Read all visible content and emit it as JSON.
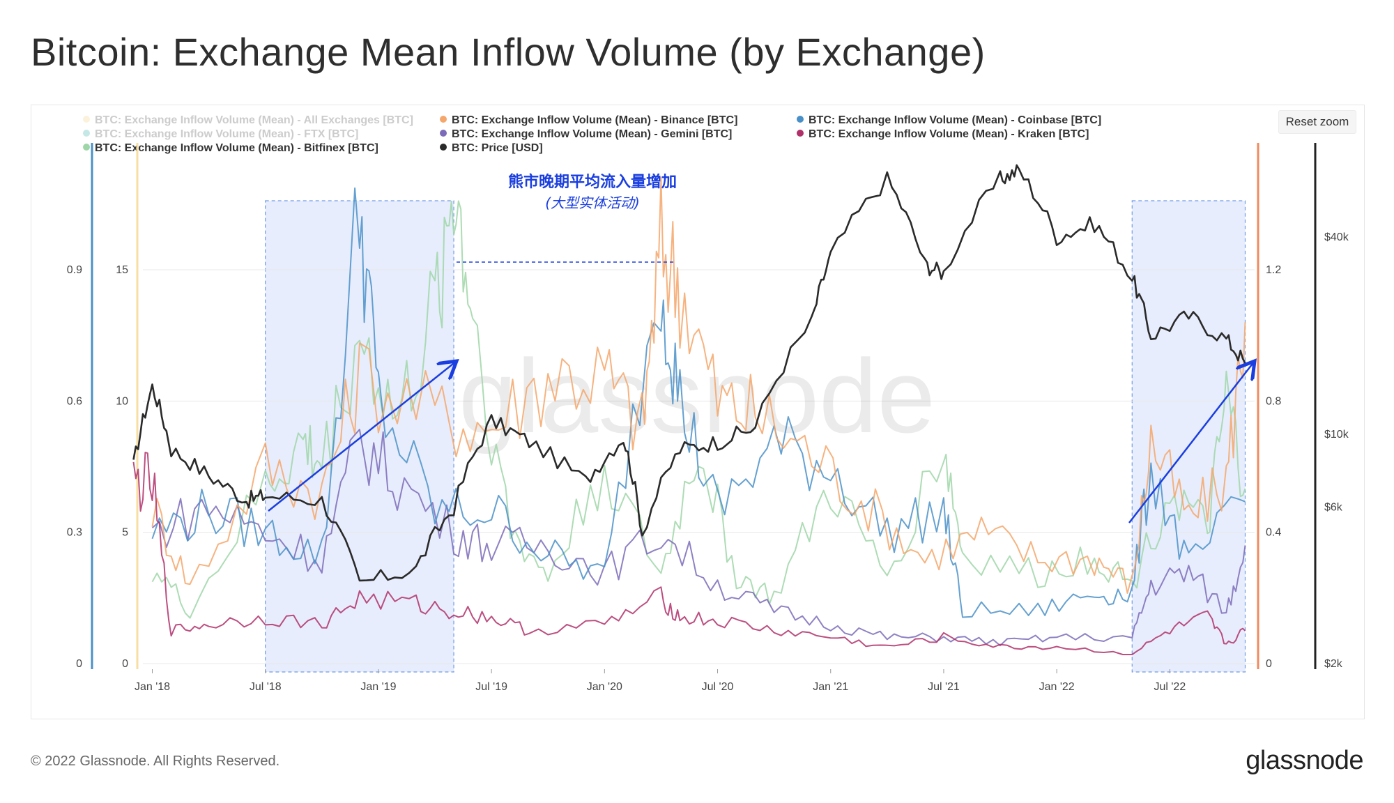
{
  "title": "Bitcoin: Exchange Mean Inflow Volume (by Exchange)",
  "reset_zoom_label": "Reset zoom",
  "watermark": "glassnode",
  "footer": {
    "copyright": "© 2022 Glassnode. All Rights Reserved.",
    "logo": "glassnode"
  },
  "annotation": {
    "line1": "熊市晚期平均流入量增加",
    "line2": "(大型实体活动)",
    "color": "#1a3ee0"
  },
  "chart_data": {
    "type": "line",
    "x_tick_labels": [
      "Jan '18",
      "Jul '18",
      "Jan '19",
      "Jul '19",
      "Jan '20",
      "Jul '20",
      "Jan '21",
      "Jul '21",
      "Jan '22",
      "Jul '22"
    ],
    "axes": {
      "left_outer": {
        "ticks": [
          "0",
          "0.3",
          "0.6",
          "0.9"
        ],
        "color": "#4a90c8"
      },
      "left_inner": {
        "ticks": [
          "0",
          "5",
          "10",
          "15"
        ],
        "color": "#f5a55c"
      },
      "right_inner": {
        "ticks": [
          "0",
          "0.4",
          "0.8",
          "1.2"
        ],
        "color": "#f08a5d"
      },
      "right_outer": {
        "ticks": [
          "$2k",
          "$6k",
          "$10k",
          "$40k"
        ],
        "scale": "log",
        "color": "#222222"
      }
    },
    "legend_position": "top",
    "legend": [
      {
        "label": "BTC: Exchange Inflow Volume (Mean) - All Exchanges [BTC]",
        "color": "#f7dfa4",
        "hidden": true
      },
      {
        "label": "BTC: Exchange Inflow Volume (Mean) - Binance [BTC]",
        "color": "#f5a66a",
        "hidden": false
      },
      {
        "label": "BTC: Exchange Inflow Volume (Mean) - Coinbase [BTC]",
        "color": "#4a90c8",
        "hidden": false
      },
      {
        "label": "BTC: Exchange Inflow Volume (Mean) - FTX [BTC]",
        "color": "#6cc6c0",
        "hidden": true
      },
      {
        "label": "BTC: Exchange Inflow Volume (Mean) - Gemini [BTC]",
        "color": "#7b6bb8",
        "hidden": false
      },
      {
        "label": "BTC: Exchange Inflow Volume (Mean) - Kraken [BTC]",
        "color": "#b0306a",
        "hidden": false
      },
      {
        "label": "BTC: Exchange Inflow Volume (Mean) - Bitfinex [BTC]",
        "color": "#9fd6a8",
        "hidden": false
      },
      {
        "label": "BTC: Price [USD]",
        "color": "#2a2a2a",
        "hidden": false
      }
    ],
    "highlight_periods": [
      [
        "Jul '18",
        "May '19"
      ],
      [
        "May '22",
        "Nov '22"
      ]
    ],
    "series": [
      {
        "name": "BTC: Price [USD]",
        "axis": "right_outer",
        "points": [
          [
            "Dec '17",
            8000
          ],
          [
            "Jan '18",
            14000
          ],
          [
            "Feb '18",
            9000
          ],
          [
            "Apr '18",
            7500
          ],
          [
            "Jun '18",
            6300
          ],
          [
            "Jul '18",
            6500
          ],
          [
            "Oct '18",
            6300
          ],
          [
            "Dec '18",
            3500
          ],
          [
            "Mar '19",
            3900
          ],
          [
            "May '19",
            6000
          ],
          [
            "Jul '19",
            11000
          ],
          [
            "Sep '19",
            9500
          ],
          [
            "Dec '19",
            7200
          ],
          [
            "Feb '20",
            9800
          ],
          [
            "Mar '20",
            5000
          ],
          [
            "May '20",
            9000
          ],
          [
            "Jul '20",
            9500
          ],
          [
            "Sep '20",
            10500
          ],
          [
            "Dec '20",
            22000
          ],
          [
            "Jan '21",
            35000
          ],
          [
            "Apr '21",
            60000
          ],
          [
            "Jun '21",
            33000
          ],
          [
            "Jul '21",
            31000
          ],
          [
            "Oct '21",
            60000
          ],
          [
            "Nov '21",
            64000
          ],
          [
            "Jan '22",
            40000
          ],
          [
            "Mar '22",
            44000
          ],
          [
            "May '22",
            30000
          ],
          [
            "Jun '22",
            20000
          ],
          [
            "Aug '22",
            23000
          ],
          [
            "Oct '22",
            19500
          ],
          [
            "Nov '22",
            16500
          ]
        ]
      },
      {
        "name": "BTC: Exchange Inflow Volume (Mean) - Binance [BTC]",
        "axis": "left_inner",
        "points": [
          [
            "Jan '18",
            6
          ],
          [
            "Mar '18",
            3
          ],
          [
            "Jul '18",
            7.5
          ],
          [
            "Oct '18",
            6.5
          ],
          [
            "Dec '18",
            11
          ],
          [
            "Apr '19",
            9.5
          ],
          [
            "Jul '19",
            9
          ],
          [
            "Oct '19",
            11
          ],
          [
            "Jan '20",
            11
          ],
          [
            "Mar '20",
            9
          ],
          [
            "Apr '20",
            16
          ],
          [
            "May '20",
            14.5
          ],
          [
            "Jul '20",
            10
          ],
          [
            "Sep '20",
            9.5
          ],
          [
            "Dec '20",
            8
          ],
          [
            "Mar '21",
            6
          ],
          [
            "Jun '21",
            4
          ],
          [
            "Sep '21",
            5
          ],
          [
            "Dec '21",
            4
          ],
          [
            "Mar '22",
            4
          ],
          [
            "May '22",
            3
          ],
          [
            "Jun '22",
            8.5
          ],
          [
            "Aug '22",
            5.5
          ],
          [
            "Oct '22",
            7
          ],
          [
            "Nov '22",
            13
          ]
        ]
      },
      {
        "name": "BTC: Exchange Inflow Volume (Mean) - Coinbase [BTC]",
        "axis": "left_outer",
        "points": [
          [
            "Jan '18",
            0.3
          ],
          [
            "Apr '18",
            0.35
          ],
          [
            "Jul '18",
            0.3
          ],
          [
            "Oct '18",
            0.25
          ],
          [
            "Dec '18",
            1.05
          ],
          [
            "Jan '19",
            0.6
          ],
          [
            "Apr '19",
            0.35
          ],
          [
            "Jul '19",
            0.35
          ],
          [
            "Oct '19",
            0.25
          ],
          [
            "Jan '20",
            0.2
          ],
          [
            "Apr '20",
            0.9
          ],
          [
            "May '20",
            0.6
          ],
          [
            "Jul '20",
            0.35
          ],
          [
            "Oct '20",
            0.5
          ],
          [
            "Jan '21",
            0.45
          ],
          [
            "Apr '21",
            0.3
          ],
          [
            "Jul '21",
            0.35
          ],
          [
            "Aug '21",
            0.12
          ],
          [
            "Dec '21",
            0.12
          ],
          [
            "Mar '22",
            0.16
          ],
          [
            "May '22",
            0.16
          ],
          [
            "Jun '22",
            0.45
          ],
          [
            "Aug '22",
            0.22
          ],
          [
            "Nov '22",
            0.37
          ]
        ]
      },
      {
        "name": "BTC: Exchange Inflow Volume (Mean) - Gemini [BTC]",
        "axis": "left_inner",
        "points": [
          [
            "Jan '18",
            5
          ],
          [
            "Apr '18",
            6
          ],
          [
            "Jul '18",
            5
          ],
          [
            "Oct '18",
            4
          ],
          [
            "Dec '18",
            8.5
          ],
          [
            "Feb '19",
            7
          ],
          [
            "May '19",
            5
          ],
          [
            "Jul '19",
            4.5
          ],
          [
            "Oct '19",
            4.5
          ],
          [
            "Jan '20",
            3.5
          ],
          [
            "Apr '20",
            5
          ],
          [
            "Jul '20",
            3
          ],
          [
            "Oct '20",
            2
          ],
          [
            "Jan '21",
            1.5
          ],
          [
            "Apr '21",
            1
          ],
          [
            "Jul '21",
            1
          ],
          [
            "Oct '21",
            0.8
          ],
          [
            "Jan '22",
            1
          ],
          [
            "May '22",
            1
          ],
          [
            "Jun '22",
            3
          ],
          [
            "Aug '22",
            3.5
          ],
          [
            "Oct '22",
            2
          ],
          [
            "Nov '22",
            4.5
          ]
        ]
      },
      {
        "name": "BTC: Exchange Inflow Volume (Mean) - Kraken [BTC]",
        "axis": "right_inner",
        "points": [
          [
            "Dec '17",
            0.55
          ],
          [
            "Jan '18",
            0.55
          ],
          [
            "Feb '18",
            0.1
          ],
          [
            "Apr '18",
            0.12
          ],
          [
            "Jul '18",
            0.14
          ],
          [
            "Oct '18",
            0.12
          ],
          [
            "Dec '18",
            0.2
          ],
          [
            "Mar '19",
            0.18
          ],
          [
            "May '19",
            0.16
          ],
          [
            "Jul '19",
            0.14
          ],
          [
            "Sep '19",
            0.1
          ],
          [
            "Jan '20",
            0.12
          ],
          [
            "Apr '20",
            0.2
          ],
          [
            "May '20",
            0.14
          ],
          [
            "Jul '20",
            0.13
          ],
          [
            "Oct '20",
            0.1
          ],
          [
            "Jan '21",
            0.08
          ],
          [
            "Apr '21",
            0.05
          ],
          [
            "Jul '21",
            0.08
          ],
          [
            "Oct '21",
            0.05
          ],
          [
            "Jan '22",
            0.05
          ],
          [
            "May '22",
            0.03
          ],
          [
            "Jul '22",
            0.1
          ],
          [
            "Sep '22",
            0.14
          ],
          [
            "Oct '22",
            0.06
          ],
          [
            "Nov '22",
            0.1
          ]
        ]
      },
      {
        "name": "BTC: Exchange Inflow Volume (Mean) - Bitfinex [BTC]",
        "axis": "left_outer",
        "points": [
          [
            "Jan '18",
            0.22
          ],
          [
            "Mar '18",
            0.12
          ],
          [
            "Jul '18",
            0.4
          ],
          [
            "Sep '18",
            0.5
          ],
          [
            "Oct '18",
            0.45
          ],
          [
            "Dec '18",
            0.75
          ],
          [
            "Feb '19",
            0.55
          ],
          [
            "Apr '19",
            0.8
          ],
          [
            "May '19",
            1.1
          ],
          [
            "Jun '19",
            0.8
          ],
          [
            "Aug '19",
            0.3
          ],
          [
            "Oct '19",
            0.2
          ],
          [
            "Jan '20",
            0.45
          ],
          [
            "Apr '20",
            0.2
          ],
          [
            "Jun '20",
            0.5
          ],
          [
            "Aug '20",
            0.2
          ],
          [
            "Oct '20",
            0.15
          ],
          [
            "Jan '21",
            0.4
          ],
          [
            "Apr '21",
            0.2
          ],
          [
            "Jul '21",
            0.5
          ],
          [
            "Aug '21",
            0.25
          ],
          [
            "Dec '21",
            0.2
          ],
          [
            "Mar '22",
            0.25
          ],
          [
            "May '22",
            0.18
          ],
          [
            "Jul '22",
            0.4
          ],
          [
            "Sep '22",
            0.3
          ],
          [
            "Oct '22",
            0.6
          ],
          [
            "Nov '22",
            0.4
          ]
        ]
      }
    ]
  }
}
